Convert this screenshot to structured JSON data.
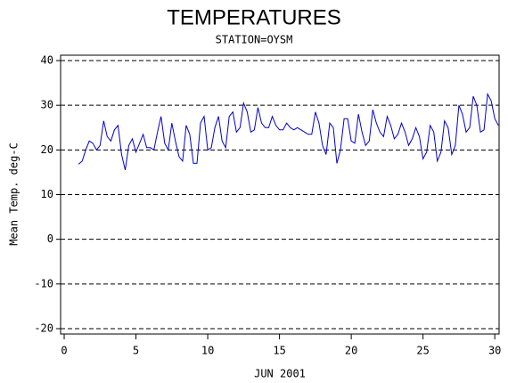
{
  "chart_data": {
    "type": "line",
    "title": "TEMPERATURES",
    "subtitle": "STATION=OYSM",
    "x_label": "JUN 2001",
    "y_label": "Mean Temp. deg-C",
    "xlim": [
      -0.25,
      30.3
    ],
    "xticks": [
      0,
      5,
      10,
      15,
      20,
      25,
      30
    ],
    "ylim": [
      -21.2,
      41.2
    ],
    "yticks": [
      -20,
      -10,
      0,
      10,
      20,
      30,
      40
    ],
    "grid": true,
    "series": [
      {
        "color": "#0000cc",
        "x": [
          1,
          1.25,
          1.5,
          1.75,
          2,
          2.25,
          2.5,
          2.75,
          3,
          3.25,
          3.5,
          3.75,
          4,
          4.25,
          4.5,
          4.75,
          5,
          5.25,
          5.5,
          5.75,
          6,
          6.25,
          6.5,
          6.75,
          7,
          7.25,
          7.5,
          7.75,
          8,
          8.25,
          8.5,
          8.75,
          9,
          9.25,
          9.5,
          9.75,
          10,
          10.25,
          10.5,
          10.75,
          11,
          11.25,
          11.5,
          11.75,
          12,
          12.25,
          12.5,
          12.75,
          13,
          13.25,
          13.5,
          13.75,
          14,
          14.25,
          14.5,
          14.75,
          15,
          15.25,
          15.5,
          15.75,
          16,
          16.25,
          16.5,
          16.75,
          17,
          17.25,
          17.5,
          17.75,
          18,
          18.25,
          18.5,
          18.75,
          19,
          19.25,
          19.5,
          19.75,
          20,
          20.25,
          20.5,
          20.75,
          21,
          21.25,
          21.5,
          21.75,
          22,
          22.25,
          22.5,
          22.75,
          23,
          23.25,
          23.5,
          23.75,
          24,
          24.25,
          24.5,
          24.75,
          25,
          25.25,
          25.5,
          25.75,
          26,
          26.25,
          26.5,
          26.75,
          27,
          27.25,
          27.5,
          27.75,
          28,
          28.25,
          28.5,
          28.75,
          29,
          29.25,
          29.5,
          29.75,
          30,
          30.25
        ],
        "values": [
          16.8,
          17.5,
          20,
          22,
          21.5,
          20,
          21,
          26.5,
          23,
          22,
          24.5,
          25.5,
          19,
          15.5,
          21,
          22.5,
          19.5,
          21.5,
          23.5,
          20.5,
          20.5,
          20,
          24,
          27.5,
          21.5,
          20,
          26,
          22,
          18.5,
          17.5,
          25.5,
          23.5,
          17,
          17,
          26,
          27.5,
          20,
          20.5,
          25,
          27.5,
          22,
          20.5,
          27.5,
          28.5,
          24,
          25,
          30.5,
          28.5,
          24,
          24.5,
          29.5,
          26,
          25,
          25,
          27.5,
          25.5,
          24.5,
          24.5,
          26,
          25,
          24.5,
          25,
          24.5,
          24,
          23.5,
          23.5,
          28.5,
          26,
          21,
          19,
          26,
          25,
          17,
          20,
          27,
          27,
          22,
          21.5,
          28,
          24,
          21,
          22,
          29,
          26,
          24,
          23,
          27.5,
          25.5,
          22.5,
          23.5,
          26,
          24,
          21,
          22.5,
          25,
          23,
          18,
          19.5,
          25.5,
          24,
          17.5,
          19.5,
          26.5,
          25,
          19,
          21,
          30,
          28,
          24,
          25,
          32,
          30,
          24,
          24.5,
          32.5,
          31,
          27,
          25.5
        ]
      }
    ]
  }
}
